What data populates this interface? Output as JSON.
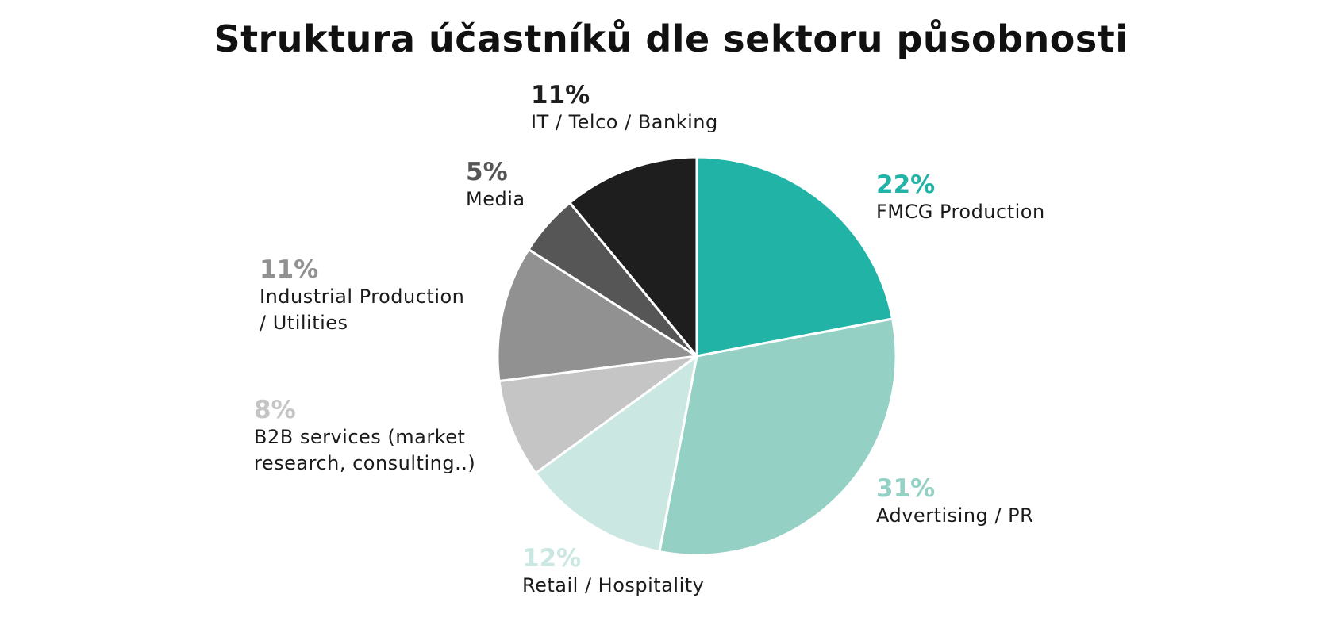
{
  "chart_data": {
    "type": "pie",
    "title": "Struktura účastníků dle sektoru působnosti",
    "start_angle_deg": 0,
    "direction": "clockwise",
    "slices": [
      {
        "label": "FMCG Production",
        "value": 22,
        "value_label": "22%",
        "color": "#21b3a5"
      },
      {
        "label": "Advertising / PR",
        "value": 31,
        "value_label": "31%",
        "color": "#95d0c5"
      },
      {
        "label": "Retail / Hospitality",
        "value": 12,
        "value_label": "12%",
        "color": "#cbe7e2"
      },
      {
        "label": "B2B services (market\nresearch, consulting..)",
        "value": 8,
        "value_label": "8%",
        "color": "#c5c5c5"
      },
      {
        "label": "Industrial Production\n/ Utilities",
        "value": 11,
        "value_label": "11%",
        "color": "#919191"
      },
      {
        "label": "Media",
        "value": 5,
        "value_label": "5%",
        "color": "#575656"
      },
      {
        "label": "IT / Telco / Banking",
        "value": 11,
        "value_label": "11%",
        "color": "#1e1e1e"
      }
    ]
  }
}
